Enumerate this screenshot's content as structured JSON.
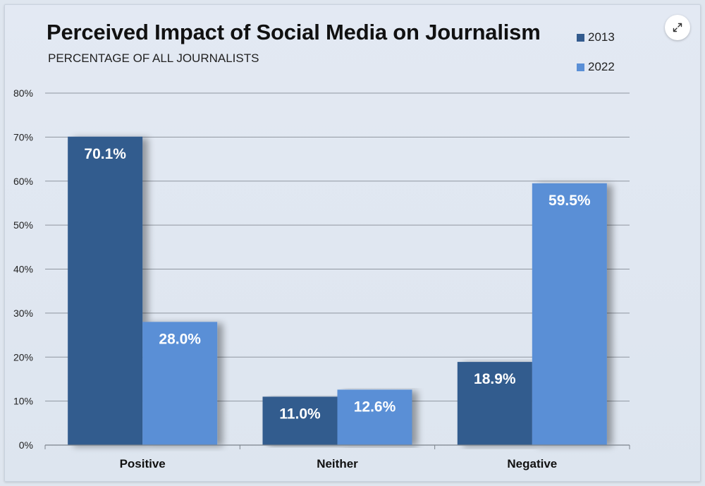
{
  "chart_data": {
    "type": "bar",
    "title": "Perceived Impact of Social Media on Journalism",
    "subtitle": "PERCENTAGE OF ALL JOURNALISTS",
    "categories": [
      "Positive",
      "Neither",
      "Negative"
    ],
    "series": [
      {
        "name": "2013",
        "values": [
          70.1,
          11.0,
          18.9
        ],
        "labels": [
          "70.1%",
          "11.0%",
          "18.9%"
        ],
        "color": "#335b8e"
      },
      {
        "name": "2022",
        "values": [
          28.0,
          12.6,
          59.5
        ],
        "labels": [
          "28.0%",
          "12.6%",
          "59.5%"
        ],
        "color": "#5a8fd6"
      }
    ],
    "ylim": [
      0,
      80
    ],
    "yticks": [
      "0%",
      "10%",
      "20%",
      "30%",
      "40%",
      "50%",
      "60%",
      "70%",
      "80%"
    ],
    "xlabel": "",
    "ylabel": "",
    "grid": true,
    "legend_position": "top-right"
  },
  "expand_icon": "expand-icon"
}
